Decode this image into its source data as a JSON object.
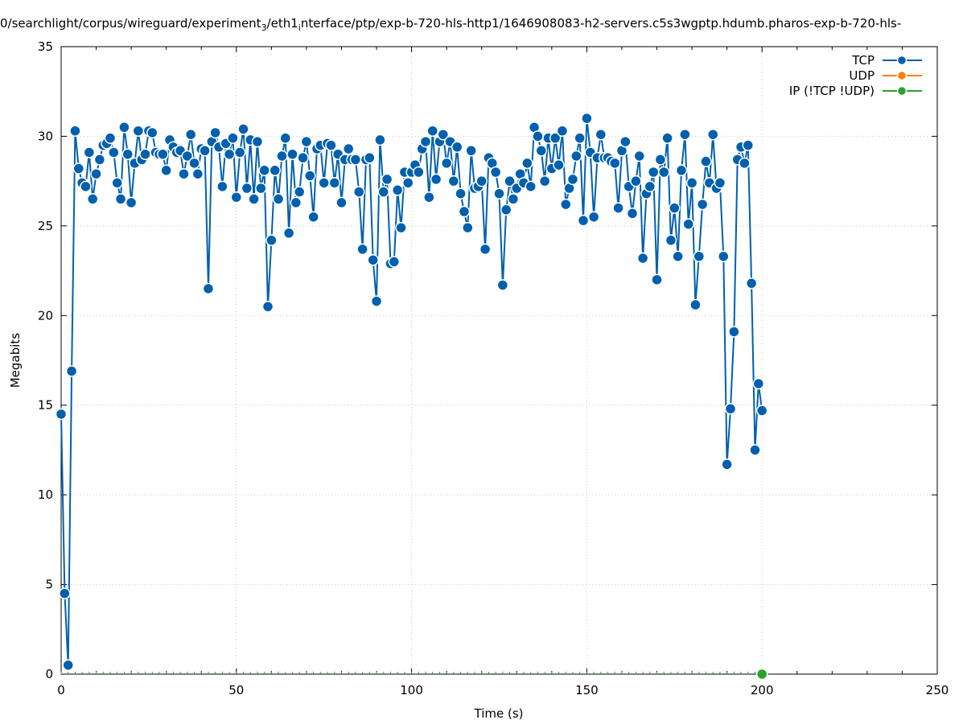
{
  "chart_data": {
    "type": "line",
    "title": "0/searchlight/corpus/wireguard/experiment",
    "title_sub": "3",
    "title_rest": "/eth1",
    "title_sub2": "i",
    "title_tail": "nterface/ptp/exp-b-720-hls-http1/1646908083-h2-servers.c5s3wgptp.hdumb.pharos-exp-b-720-hls-",
    "xlabel": "Time (s)",
    "ylabel": "Megabits",
    "xlim": [
      0,
      250
    ],
    "ylim": [
      0,
      35
    ],
    "xticks": [
      "0",
      "50",
      "100",
      "150",
      "200",
      "250"
    ],
    "yticks": [
      "0",
      "5",
      "10",
      "15",
      "20",
      "25",
      "30",
      "35"
    ],
    "grid": true,
    "legend_position": "top-right",
    "series": [
      {
        "name": "TCP",
        "color": "#0060ad",
        "x": [
          0,
          1,
          2,
          3,
          4,
          5,
          6,
          7,
          8,
          9,
          10,
          11,
          12,
          13,
          14,
          15,
          16,
          17,
          18,
          19,
          20,
          21,
          22,
          23,
          24,
          25,
          26,
          27,
          28,
          29,
          30,
          31,
          32,
          33,
          34,
          35,
          36,
          37,
          38,
          39,
          40,
          41,
          42,
          43,
          44,
          45,
          46,
          47,
          48,
          49,
          50,
          51,
          52,
          53,
          54,
          55,
          56,
          57,
          58,
          59,
          60,
          61,
          62,
          63,
          64,
          65,
          66,
          67,
          68,
          69,
          70,
          71,
          72,
          73,
          74,
          75,
          76,
          77,
          78,
          79,
          80,
          81,
          82,
          83,
          84,
          85,
          86,
          87,
          88,
          89,
          90,
          91,
          92,
          93,
          94,
          95,
          96,
          97,
          98,
          99,
          100,
          101,
          102,
          103,
          104,
          105,
          106,
          107,
          108,
          109,
          110,
          111,
          112,
          113,
          114,
          115,
          116,
          117,
          118,
          119,
          120,
          121,
          122,
          123,
          124,
          125,
          126,
          127,
          128,
          129,
          130,
          131,
          132,
          133,
          134,
          135,
          136,
          137,
          138,
          139,
          140,
          141,
          142,
          143,
          144,
          145,
          146,
          147,
          148,
          149,
          150,
          151,
          152,
          153,
          154,
          155,
          156,
          157,
          158,
          159,
          160,
          161,
          162,
          163,
          164,
          165,
          166,
          167,
          168,
          169,
          170,
          171,
          172,
          173,
          174,
          175,
          176,
          177,
          178,
          179,
          180,
          181,
          182,
          183,
          184,
          185,
          186,
          187,
          188,
          189,
          190,
          191,
          192,
          193,
          194,
          195,
          196,
          197,
          198,
          199,
          200
        ],
        "y": [
          14.5,
          4.5,
          0.5,
          16.9,
          30.3,
          28.2,
          27.4,
          27.2,
          29.1,
          26.5,
          27.9,
          28.7,
          29.5,
          29.6,
          29.9,
          29.1,
          27.4,
          26.5,
          30.5,
          29.0,
          26.3,
          28.5,
          30.3,
          28.7,
          29.0,
          30.3,
          30.2,
          29.1,
          29.0,
          29.0,
          28.1,
          29.8,
          29.4,
          29.1,
          29.2,
          27.9,
          28.9,
          30.1,
          28.5,
          27.9,
          29.3,
          29.2,
          21.5,
          29.7,
          30.2,
          29.4,
          27.2,
          29.6,
          29.0,
          29.9,
          26.6,
          29.1,
          30.4,
          27.1,
          29.8,
          26.5,
          29.7,
          27.1,
          28.1,
          20.5,
          24.2,
          28.1,
          26.5,
          28.9,
          29.9,
          24.6,
          29.0,
          26.3,
          26.9,
          28.8,
          29.7,
          27.8,
          25.5,
          29.3,
          29.5,
          27.4,
          29.6,
          29.5,
          27.4,
          29.0,
          26.3,
          28.7,
          29.3,
          28.7,
          28.7,
          26.9,
          23.7,
          28.7,
          28.8,
          23.1,
          20.8,
          29.8,
          26.9,
          27.6,
          22.9,
          23.0,
          27.0,
          24.9,
          28.0,
          27.4,
          28.0,
          28.4,
          28.0,
          29.3,
          29.7,
          26.6,
          30.3,
          27.6,
          29.7,
          30.1,
          28.5,
          29.7,
          27.5,
          29.4,
          26.8,
          25.8,
          24.9,
          29.2,
          27.1,
          27.2,
          27.5,
          23.7,
          28.8,
          28.5,
          28.0,
          26.8,
          21.7,
          25.9,
          27.5,
          26.5,
          27.1,
          27.9,
          27.4,
          28.5,
          27.2,
          30.5,
          30.0,
          29.2,
          27.5,
          29.9,
          28.2,
          29.9,
          28.4,
          30.3,
          26.2,
          27.1,
          27.6,
          28.9,
          29.9,
          25.3,
          31.0,
          29.1,
          25.5,
          28.8,
          30.1,
          28.8,
          28.8,
          28.6,
          28.5,
          26.0,
          29.2,
          29.7,
          27.2,
          25.7,
          27.5,
          28.9,
          23.2,
          26.8,
          27.2,
          28.0,
          22.0,
          28.7,
          28.0,
          29.9,
          24.2,
          26.0,
          23.3,
          28.1,
          30.1,
          25.1,
          27.4,
          20.6,
          23.3,
          26.2,
          28.6,
          27.4,
          30.1,
          27.1,
          27.4,
          23.3,
          11.7,
          14.8,
          19.1,
          28.7,
          29.4,
          28.5,
          29.5,
          21.8,
          12.5,
          16.2,
          14.7
        ]
      },
      {
        "name": "UDP",
        "color": "#ff7f0e",
        "x": [],
        "y": []
      },
      {
        "name": "IP (!TCP  !UDP)",
        "color": "#2ca02c",
        "x": [
          200
        ],
        "y": [
          0
        ]
      }
    ]
  }
}
